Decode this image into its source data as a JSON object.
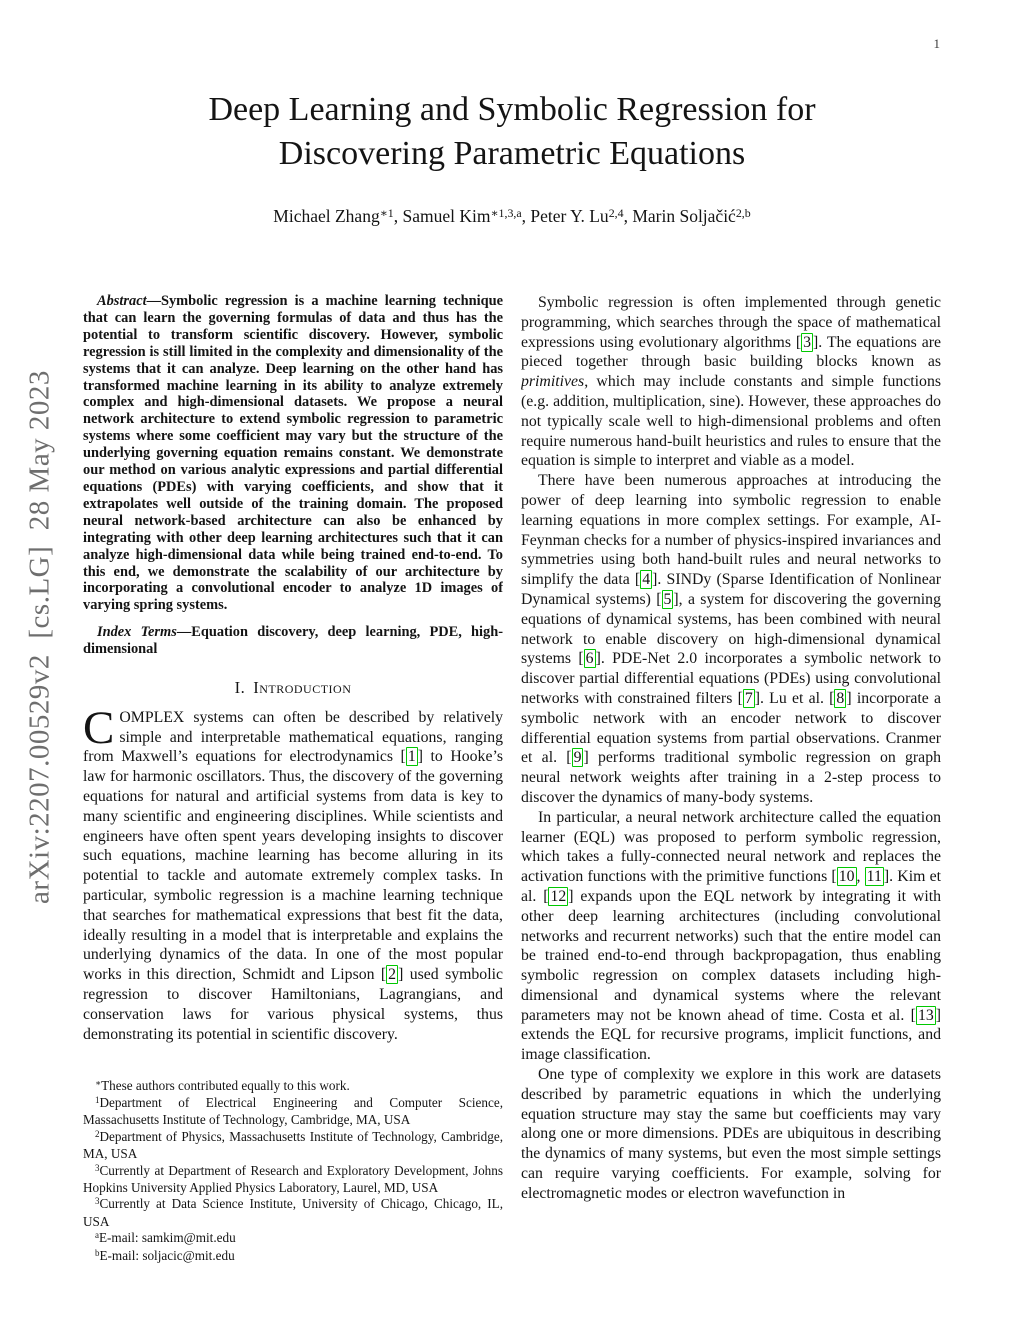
{
  "page": {
    "number": "1",
    "arxiv_banner": "arXiv:2207.00529v2  [cs.LG]  28 May 2023"
  },
  "header": {
    "title_line1": "Deep Learning and Symbolic Regression for",
    "title_line2": "Discovering Parametric Equations",
    "authors": [
      {
        "t": "text",
        "v": "Michael Zhang"
      },
      {
        "t": "sup",
        "v": "∗1"
      },
      {
        "t": "text",
        "v": ", Samuel Kim"
      },
      {
        "t": "sup",
        "v": "∗1,3,a"
      },
      {
        "t": "text",
        "v": ", Peter Y. Lu"
      },
      {
        "t": "sup",
        "v": "2,4"
      },
      {
        "t": "text",
        "v": ", Marin Soljačić"
      },
      {
        "t": "sup",
        "v": "2,b"
      }
    ]
  },
  "abstract": [
    {
      "t": "ib",
      "v": "Abstract"
    },
    {
      "t": "text",
      "v": "—Symbolic regression is a machine learning technique that can learn the governing formulas of data and thus has the potential to transform scientific discovery. However, symbolic regression is still limited in the complexity and dimensionality of the systems that it can analyze. Deep learning on the other hand has transformed machine learning in its ability to analyze extremely complex and high-dimensional datasets. We propose a neural network architecture to extend symbolic regression to parametric systems where some coefficient may vary but the structure of the underlying governing equation remains constant. We demonstrate our method on various analytic expressions and partial differential equations (PDEs) with varying coefficients, and show that it extrapolates well outside of the training domain. The proposed neural network-based architecture can also be enhanced by integrating with other deep learning architectures such that it can analyze high-dimensional data while being trained end-to-end. To this end, we demonstrate the scalability of our architecture by incorporating a convolutional encoder to analyze 1D images of varying spring systems."
    }
  ],
  "index_terms": [
    {
      "t": "ib",
      "v": "Index Terms"
    },
    {
      "t": "text",
      "v": "—Equation discovery, deep learning, PDE, high-dimensional"
    }
  ],
  "section1": {
    "numeral": "I.",
    "title": "Introduction"
  },
  "intro_paragraph": [
    {
      "t": "dropcap",
      "v": "C"
    },
    {
      "t": "text",
      "v": "OMPLEX systems can often be described by relatively simple and interpretable mathematical equations, ranging from Maxwell’s equations for electrodynamics ["
    },
    {
      "t": "cite",
      "v": "1"
    },
    {
      "t": "text",
      "v": "] to Hooke’s law for harmonic oscillators. Thus, the discovery of the governing equations for natural and artificial systems from data is key to many scientific and engineering disciplines. While scientists and engineers have often spent years developing insights to discover such equations, machine learning has become alluring in its potential to tackle and automate extremely complex tasks. In particular, symbolic regression is a machine learning technique that searches for mathematical expressions that best fit the data, ideally resulting in a model that is interpretable and explains the underlying dynamics of the data. In one of the most popular works in this direction, Schmidt and Lipson ["
    },
    {
      "t": "cite",
      "v": "2"
    },
    {
      "t": "text",
      "v": "] used symbolic regression to discover Hamiltonians, Lagrangians, and conservation laws for various physical systems, thus demonstrating its potential in scientific discovery."
    }
  ],
  "footnotes": [
    [
      {
        "t": "sup",
        "v": "∗"
      },
      {
        "t": "text",
        "v": "These authors contributed equally to this work."
      }
    ],
    [
      {
        "t": "sup",
        "v": "1"
      },
      {
        "t": "text",
        "v": "Department of Electrical Engineering and Computer Science, Massachusetts Institute of Technology, Cambridge, MA, USA"
      }
    ],
    [
      {
        "t": "sup",
        "v": "2"
      },
      {
        "t": "text",
        "v": "Department of Physics, Massachusetts Institute of Technology, Cambridge, MA, USA"
      }
    ],
    [
      {
        "t": "sup",
        "v": "3"
      },
      {
        "t": "text",
        "v": "Currently at Department of Research and Exploratory Development, Johns Hopkins University Applied Physics Laboratory, Laurel, MD, USA"
      }
    ],
    [
      {
        "t": "sup",
        "v": "3"
      },
      {
        "t": "text",
        "v": "Currently at Data Science Institute, University of Chicago, Chicago, IL, USA"
      }
    ],
    [
      {
        "t": "sup",
        "v": "a"
      },
      {
        "t": "text",
        "v": "E-mail: samkim@mit.edu"
      }
    ],
    [
      {
        "t": "sup",
        "v": "b"
      },
      {
        "t": "text",
        "v": "E-mail: soljacic@mit.edu"
      }
    ]
  ],
  "right_column": {
    "p1": [
      {
        "t": "text",
        "v": "Symbolic regression is often implemented through genetic programming, which searches through the space of mathematical expressions using evolutionary algorithms ["
      },
      {
        "t": "cite",
        "v": "3"
      },
      {
        "t": "text",
        "v": "]. The equations are pieced together through basic building blocks known as "
      },
      {
        "t": "i",
        "v": "primitives"
      },
      {
        "t": "text",
        "v": ", which may include constants and simple functions (e.g. addition, multiplication, sine). However, these approaches do not typically scale well to high-dimensional problems and often require numerous hand-built heuristics and rules to ensure that the equation is simple to interpret and viable as a model."
      }
    ],
    "p2": [
      {
        "t": "text",
        "v": "There have been numerous approaches at introducing the power of deep learning into symbolic regression to enable learning equations in more complex settings. For example, AI-Feynman checks for a number of physics-inspired invariances and symmetries using both hand-built rules and neural networks to simplify the data ["
      },
      {
        "t": "cite",
        "v": "4"
      },
      {
        "t": "text",
        "v": "]. SINDy (Sparse Identification of Nonlinear Dynamical systems) ["
      },
      {
        "t": "cite",
        "v": "5"
      },
      {
        "t": "text",
        "v": "], a system for discovering the governing equations of dynamical systems, has been combined with neural network to enable discovery on high-dimensional dynamical systems ["
      },
      {
        "t": "cite",
        "v": "6"
      },
      {
        "t": "text",
        "v": "]. PDE-Net 2.0 incorporates a symbolic network to discover partial differential equations (PDEs) using convolutional networks with constrained filters ["
      },
      {
        "t": "cite",
        "v": "7"
      },
      {
        "t": "text",
        "v": "]. Lu et al. ["
      },
      {
        "t": "cite",
        "v": "8"
      },
      {
        "t": "text",
        "v": "] incorporate a symbolic network with an encoder network to discover differential equation systems from partial observations. Cranmer et al. ["
      },
      {
        "t": "cite",
        "v": "9"
      },
      {
        "t": "text",
        "v": "] performs traditional symbolic regression on graph neural network weights after training in a 2-step process to discover the dynamics of many-body systems."
      }
    ],
    "p3": [
      {
        "t": "text",
        "v": "In particular, a neural network architecture called the equation learner (EQL) was proposed to perform symbolic regression, which takes a fully-connected neural network and replaces the activation functions with the primitive functions ["
      },
      {
        "t": "cite",
        "v": "10"
      },
      {
        "t": "text",
        "v": ", "
      },
      {
        "t": "cite",
        "v": "11"
      },
      {
        "t": "text",
        "v": "]. Kim et al. ["
      },
      {
        "t": "cite",
        "v": "12"
      },
      {
        "t": "text",
        "v": "] expands upon the EQL network by integrating it with other deep learning architectures (including convolutional networks and recurrent networks) such that the entire model can be trained end-to-end through backpropagation, thus enabling symbolic regression on complex datasets including high-dimensional and dynamical systems where the relevant parameters may not be known ahead of time. Costa et al. ["
      },
      {
        "t": "cite",
        "v": "13"
      },
      {
        "t": "text",
        "v": "] extends the EQL for recursive programs, implicit functions, and image classification."
      }
    ],
    "p4": [
      {
        "t": "text",
        "v": "One type of complexity we explore in this work are datasets described by parametric equations in which the underlying equation structure may stay the same but coefficients may vary along one or more dimensions. PDEs are ubiquitous in describing the dynamics of many systems, but even the most simple settings can require varying coefficients. For example, solving for electromagnetic modes or electron wavefunction in"
      }
    ]
  },
  "colors": {
    "citation_border": "#00c800",
    "banner_gray": "#6e6e6e",
    "text": "#141414"
  }
}
